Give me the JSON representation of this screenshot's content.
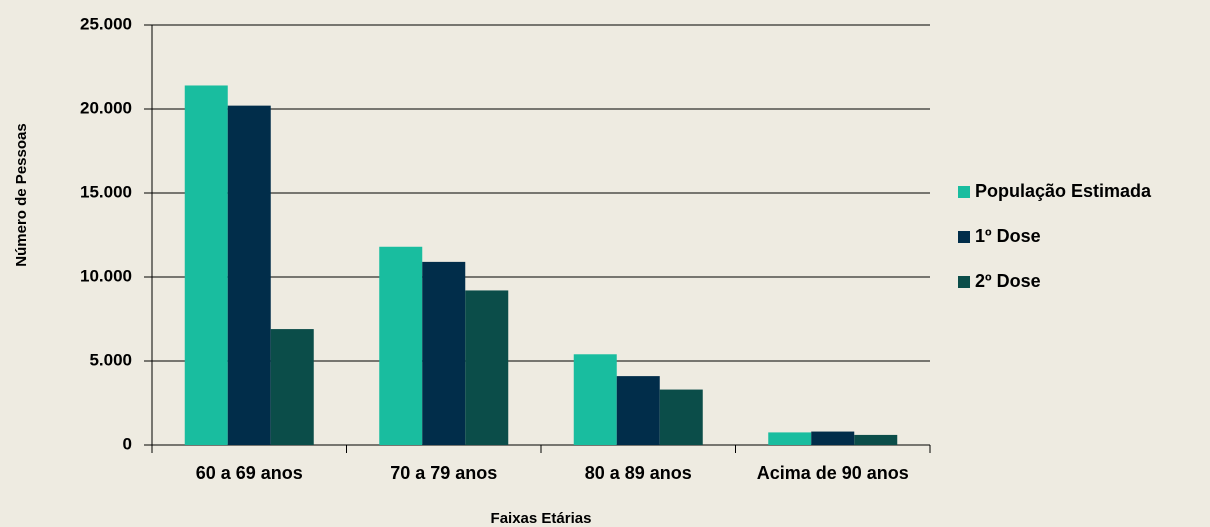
{
  "chart_data": {
    "type": "bar",
    "x_label": "Faixas Etárias",
    "y_label": "Número de Pessoas",
    "categories": [
      "60 a 69 anos",
      "70 a 79 anos",
      "80 a 89 anos",
      "Acima de 90 anos"
    ],
    "series": [
      {
        "name": "População Estimada",
        "color": "#19bd9f",
        "values": [
          21400,
          11800,
          5400,
          750
        ]
      },
      {
        "name": "1º Dose",
        "color": "#012d4a",
        "values": [
          20200,
          10900,
          4100,
          800
        ]
      },
      {
        "name": "2º Dose",
        "color": "#0b4d49",
        "values": [
          6900,
          9200,
          3300,
          600
        ]
      }
    ],
    "ylim": [
      0,
      25000
    ],
    "yticks": [
      0,
      {
        "value": 5000,
        "label": "5.000"
      },
      {
        "value": 10000,
        "label": "10.000"
      },
      {
        "value": 15000,
        "label": "15.000"
      },
      {
        "value": 20000,
        "label": "20.000"
      },
      {
        "value": 25000,
        "label": "25.000"
      }
    ],
    "grid": true,
    "legend": "right"
  }
}
